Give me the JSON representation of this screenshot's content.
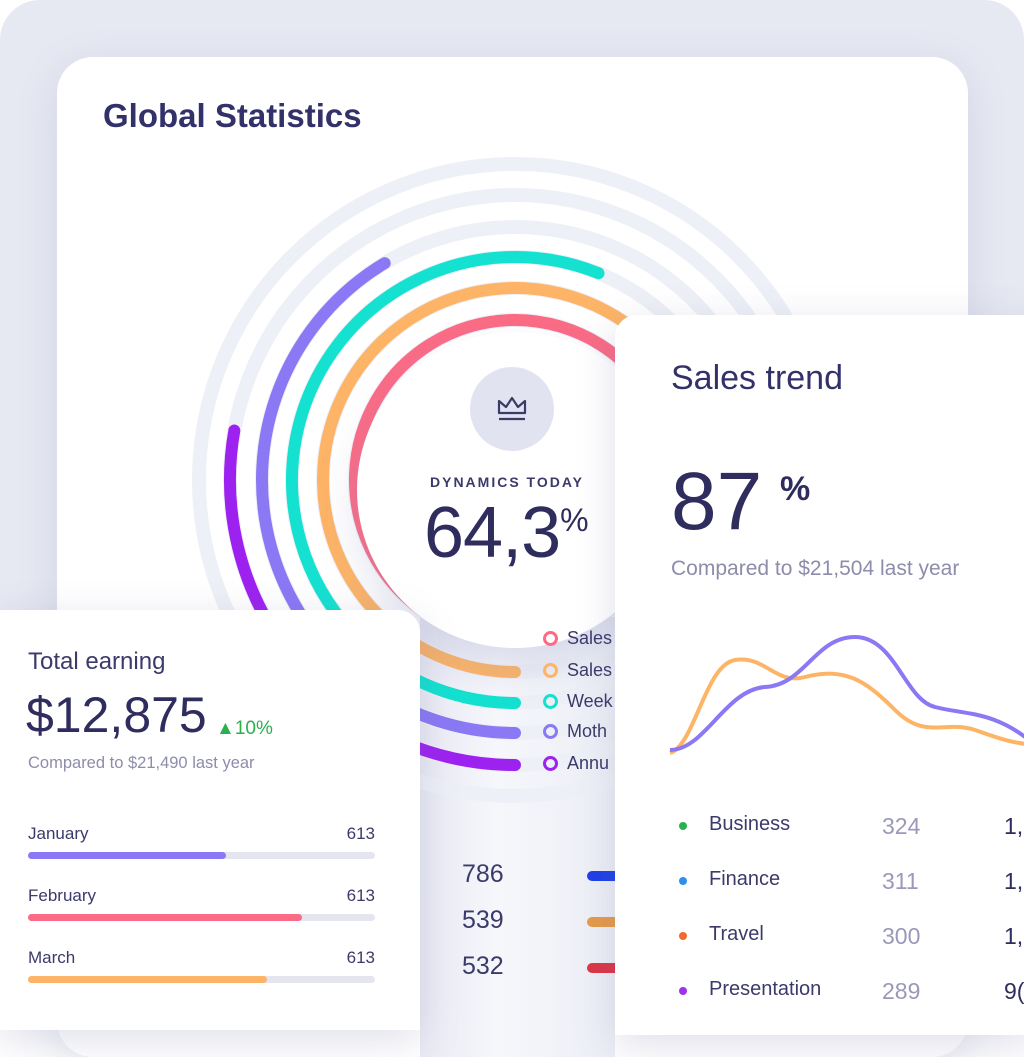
{
  "main": {
    "title": "Global Statistics",
    "dynamics": {
      "label": "DYNAMICS TODAY",
      "value": "64,3",
      "unit": "%"
    },
    "legend": [
      {
        "label": "Sales",
        "color": "#fb6b85"
      },
      {
        "label": "Sales",
        "color": "#fdb466"
      },
      {
        "label": "Week",
        "color": "#14e1d0"
      },
      {
        "label": "Moth",
        "color": "#8a78f4"
      },
      {
        "label": "Annu",
        "color": "#9d22f0"
      }
    ],
    "stats": [
      {
        "value": "786",
        "color": "#1f3fe6"
      },
      {
        "value": "539",
        "color": "#e69a4a"
      },
      {
        "value": "532",
        "color": "#dc3545"
      }
    ],
    "crown_icon": "crown-icon"
  },
  "earning": {
    "title": "Total earning",
    "amount": "$12,875",
    "change": "10%",
    "change_color": "#2ab14e",
    "compare": "Compared to $21,490 last year",
    "months": [
      {
        "label": "January",
        "value": "613",
        "progress": 0.57,
        "color": "#8a78f4"
      },
      {
        "label": "February",
        "value": "613",
        "progress": 0.79,
        "color": "#fb6b85"
      },
      {
        "label": "March",
        "value": "613",
        "progress": 0.69,
        "color": "#fdb466"
      }
    ]
  },
  "trend": {
    "title": "Sales trend",
    "value": "87",
    "unit": "%",
    "compare": "Compared to $21,504 last year",
    "series_colors": {
      "a": "#fdb466",
      "b": "#8a78f4"
    },
    "rows": [
      {
        "label": "Business",
        "value": "324",
        "value2": "1,",
        "color": "#2ab14e"
      },
      {
        "label": "Finance",
        "value": "311",
        "value2": "1,",
        "color": "#2f8ff0"
      },
      {
        "label": "Travel",
        "value": "300",
        "value2": "1,",
        "color": "#f26a2e"
      },
      {
        "label": "Presentation",
        "value": "289",
        "value2": "9(",
        "color": "#9d32ee"
      }
    ]
  }
}
